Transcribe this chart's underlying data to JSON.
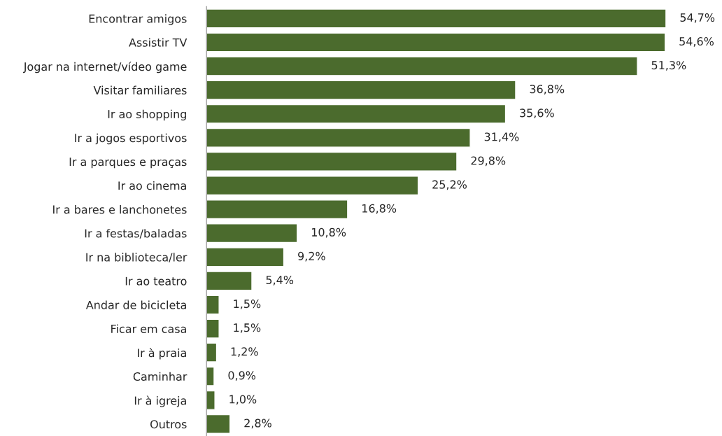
{
  "chart_data": {
    "type": "bar",
    "orientation": "horizontal",
    "tick_labels": "y",
    "grid": false,
    "legend": false,
    "categories": [
      "Encontrar amigos",
      "Assistir TV",
      "Jogar na internet/vídeo game",
      "Visitar familiares",
      "Ir ao shopping",
      "Ir a jogos esportivos",
      "Ir a parques e praças",
      "Ir ao cinema",
      "Ir a bares e lanchonetes",
      "Ir a festas/baladas",
      "Ir na biblioteca/ler",
      "Ir ao teatro",
      "Andar de bicicleta",
      "Ficar em casa",
      "Ir à praia",
      "Caminhar",
      "Ir à igreja",
      "Outros"
    ],
    "values": [
      54.7,
      54.6,
      51.3,
      36.8,
      35.6,
      31.4,
      29.8,
      25.2,
      16.8,
      10.8,
      9.2,
      5.4,
      1.5,
      1.5,
      1.2,
      0.9,
      1.0,
      2.8
    ],
    "value_labels": [
      "54,7%",
      "54,6%",
      "51,3%",
      "36,8%",
      "35,6%",
      "31,4%",
      "29,8%",
      "25,2%",
      "16,8%",
      "10,8%",
      "9,2%",
      "5,4%",
      "1,5%",
      "1,5%",
      "1,2%",
      "0,9%",
      "1,0%",
      "2,8%"
    ],
    "color": "#4b6b2d"
  }
}
